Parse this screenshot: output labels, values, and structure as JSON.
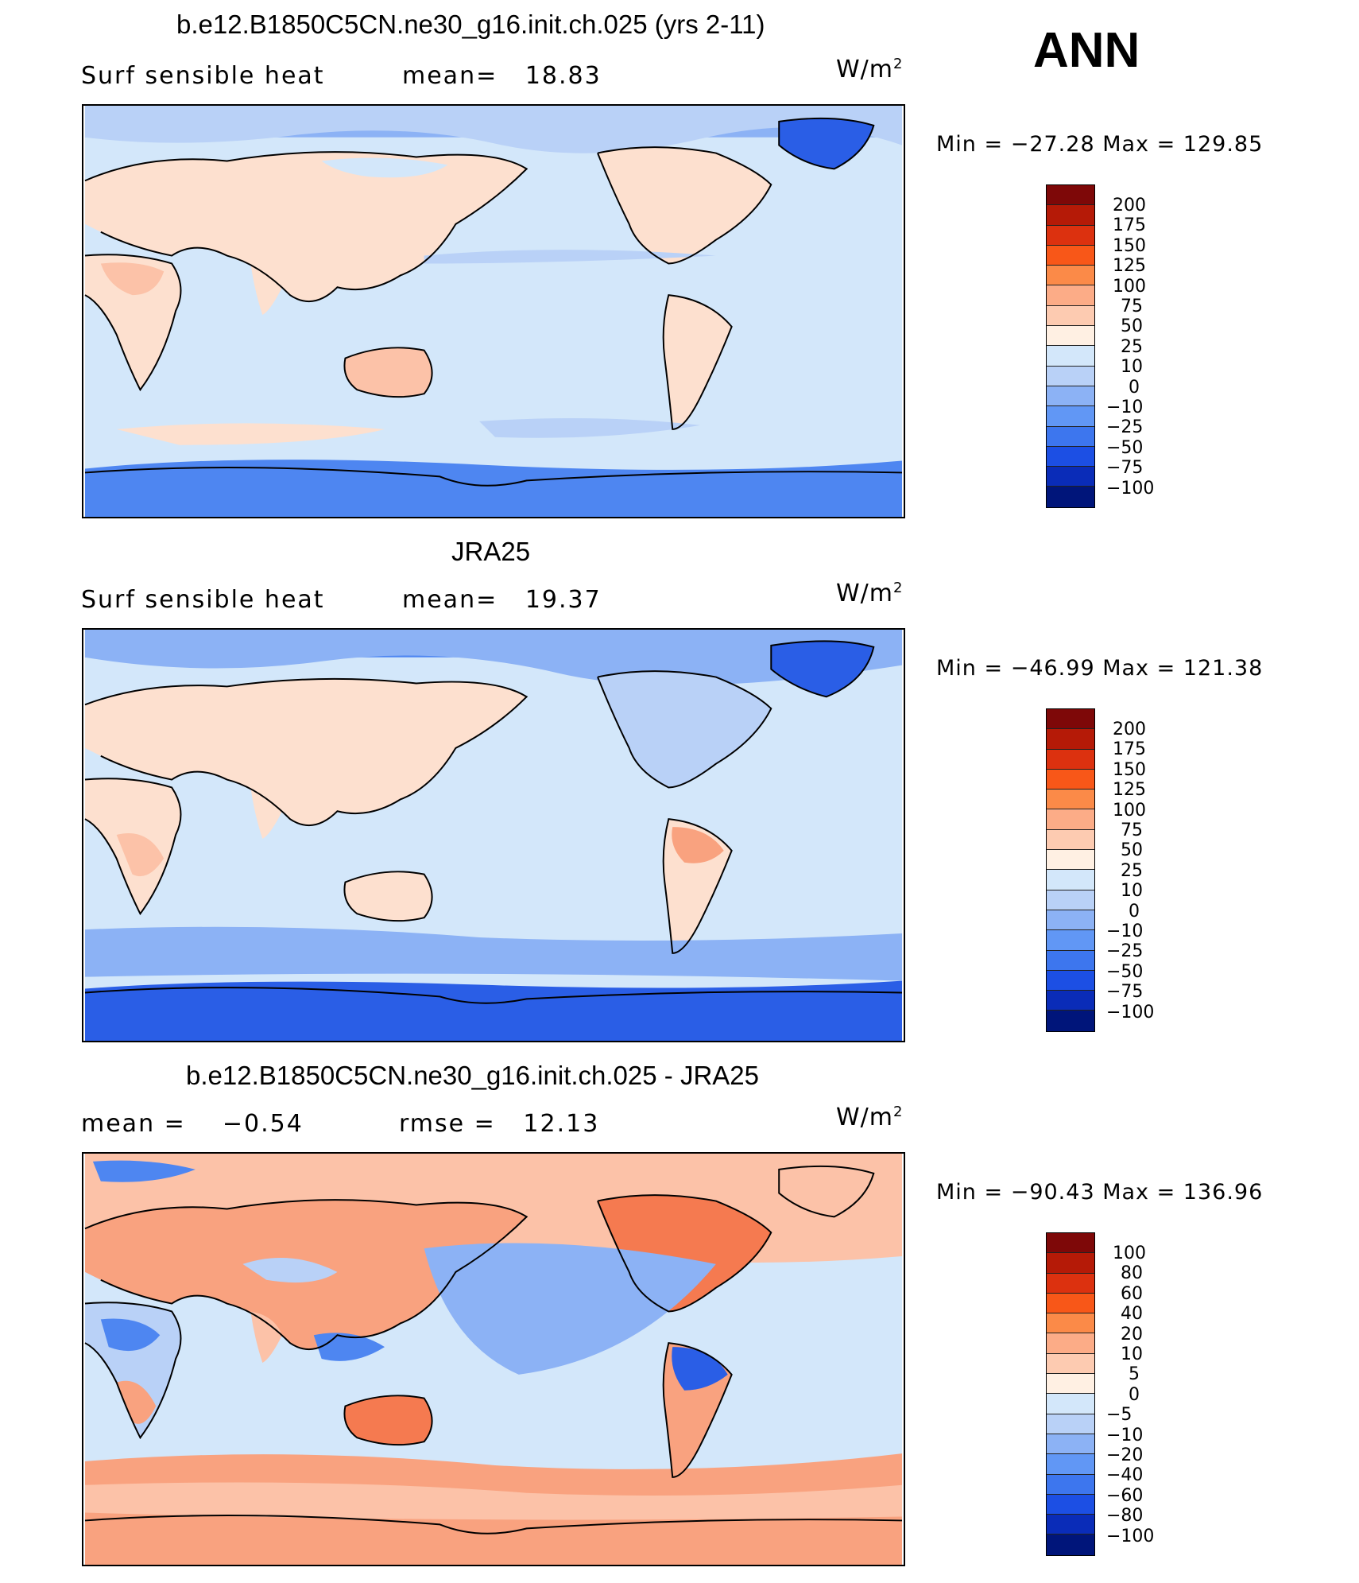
{
  "season": "ANN",
  "units": "W/m",
  "units_exp": "2",
  "panels": [
    {
      "title": "b.e12.B1850C5CN.ne30_g16.init.ch.025 (yrs 2-11)",
      "var_label": "Surf  sensible  heat",
      "stat1_label": "mean=",
      "stat1_value": "18.83",
      "minmax": "Min  =  −27.28  Max  =  129.85",
      "levels": [
        "200",
        "175",
        "150",
        "125",
        "100",
        "75",
        "50",
        "25",
        "10",
        "0",
        "−10",
        "−25",
        "−50",
        "−75",
        "−100"
      ]
    },
    {
      "title": "JRA25",
      "var_label": "Surf  sensible  heat",
      "stat1_label": "mean=",
      "stat1_value": "19.37",
      "minmax": "Min  =  −46.99  Max  =  121.38",
      "levels": [
        "200",
        "175",
        "150",
        "125",
        "100",
        "75",
        "50",
        "25",
        "10",
        "0",
        "−10",
        "−25",
        "−50",
        "−75",
        "−100"
      ]
    },
    {
      "title": "b.e12.B1850C5CN.ne30_g16.init.ch.025 - JRA25",
      "stat0_label": "mean  =",
      "stat0_value": "−0.54",
      "stat1_label": "rmse  =",
      "stat1_value": "12.13",
      "minmax": "Min  =  −90.43  Max  =  136.96",
      "levels": [
        "100",
        "80",
        "60",
        "40",
        "20",
        "10",
        "5",
        "0",
        "−5",
        "−10",
        "−20",
        "−40",
        "−60",
        "−80",
        "−100"
      ]
    }
  ],
  "colors": {
    "ocean_light": "#d3e7fa",
    "land_warm": "#fde0cf",
    "warm2": "#fcc2a8",
    "warm3": "#f9a27f",
    "warm4": "#f57a50",
    "cool1": "#b9d1f7",
    "cool2": "#8cb2f5",
    "cool3": "#4e86f1",
    "cool4": "#2a5ee6",
    "scale": [
      "#7e0808",
      "#b51a07",
      "#dc310f",
      "#f85718",
      "#fb8a48",
      "#fcac87",
      "#fdcbb1",
      "#fff0e3",
      "#d3e7fa",
      "#b9d1f7",
      "#8cb2f5",
      "#6197f5",
      "#3d76ee",
      "#1c4fe4",
      "#0a2cb8",
      "#00157a"
    ]
  }
}
